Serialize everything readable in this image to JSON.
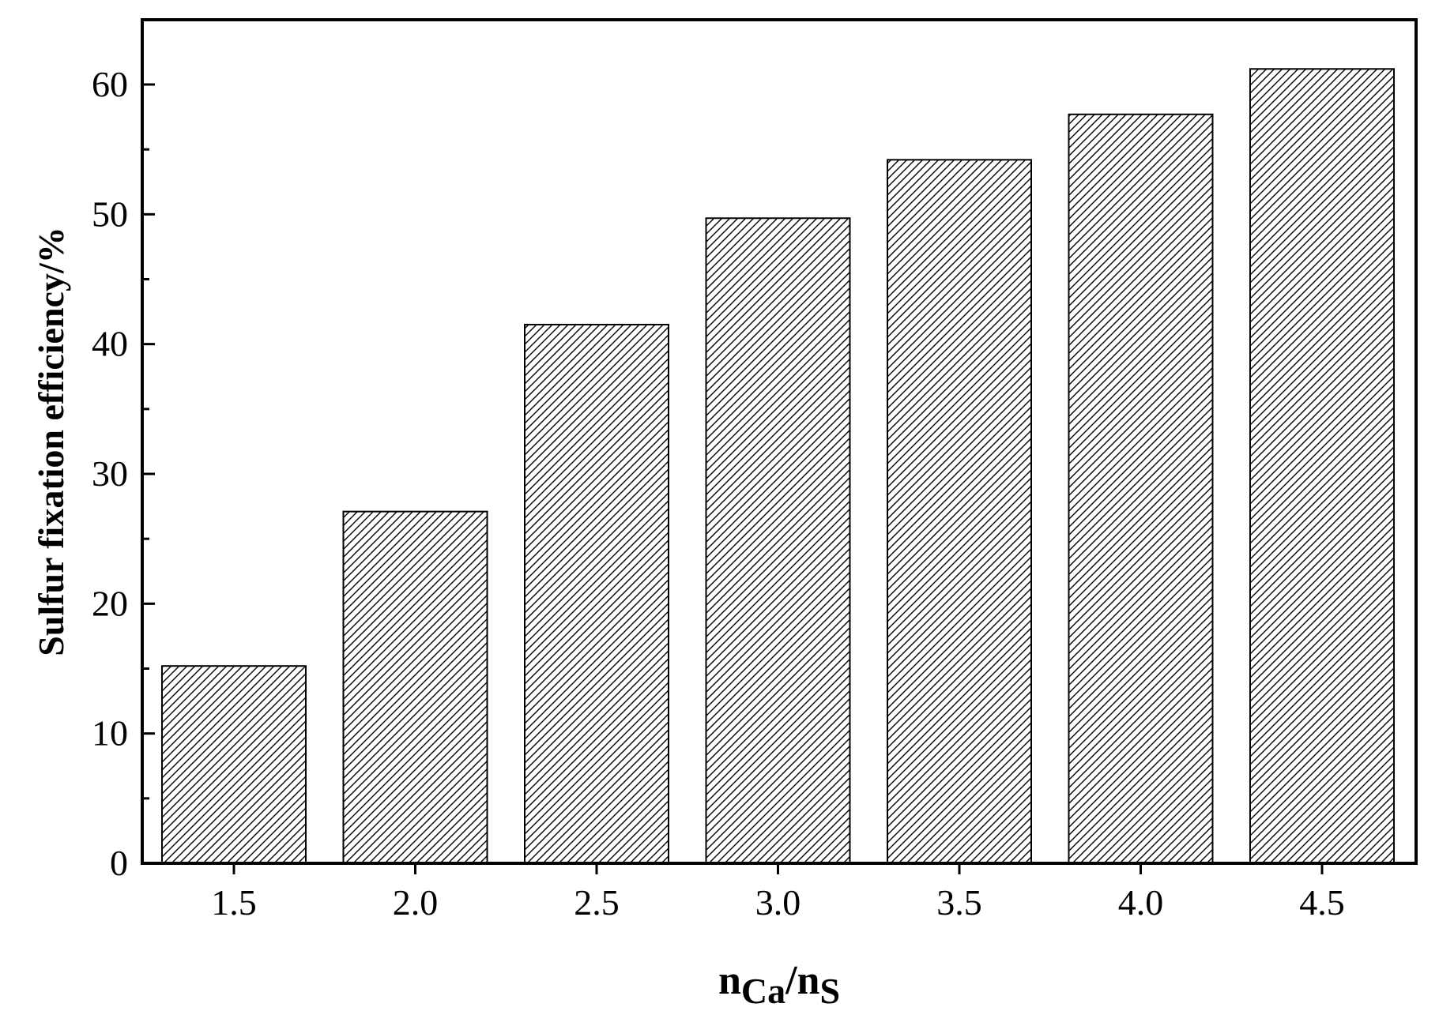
{
  "chart_data": {
    "type": "bar",
    "categories": [
      "1.5",
      "2.0",
      "2.5",
      "3.0",
      "3.5",
      "4.0",
      "4.5"
    ],
    "values": [
      15.2,
      27.1,
      41.5,
      49.7,
      54.2,
      57.7,
      61.2
    ],
    "ylim": [
      0,
      65
    ],
    "yticks": [
      "0",
      "10",
      "20",
      "30",
      "40",
      "50",
      "60"
    ],
    "ylabel": "Sulfur fixation efficiency/%",
    "xlabel": {
      "n1": "n",
      "sub1": "Ca",
      "slash": "/",
      "n2": "n",
      "sub2": "S"
    },
    "fill": "diagonal-hatch",
    "grid": false,
    "legend": "none",
    "bar_color": "#ffffff",
    "line_color": "#000000"
  }
}
